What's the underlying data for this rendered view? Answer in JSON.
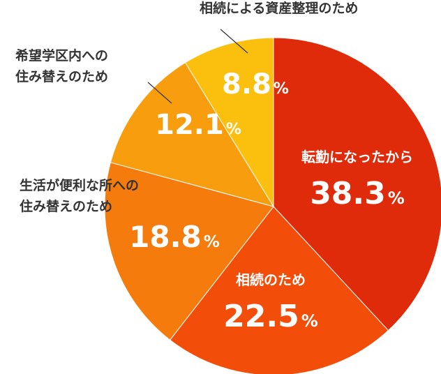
{
  "chart_data": {
    "type": "pie",
    "title": "",
    "start": "top",
    "direction": "clockwise",
    "unit": "%",
    "slices": [
      {
        "label_lines": [
          "転勤になったから"
        ],
        "value": 38.3,
        "value_text": "38.3",
        "color": "#E02B0A"
      },
      {
        "label_lines": [
          "相続のため"
        ],
        "value": 22.5,
        "value_text": "22.5",
        "color": "#F24E0A"
      },
      {
        "label_lines": [
          "生活が便利な所への",
          "住み替えのため"
        ],
        "value": 18.8,
        "value_text": "18.8",
        "color": "#F57B0C"
      },
      {
        "label_lines": [
          "希望学区内への",
          "住み替えのため"
        ],
        "value": 12.1,
        "value_text": "12.1",
        "color": "#F89D0E"
      },
      {
        "label_lines": [
          "相続による資産整理のため"
        ],
        "value": 8.8,
        "value_text": "8.8",
        "color": "#FBBF0E"
      }
    ]
  }
}
